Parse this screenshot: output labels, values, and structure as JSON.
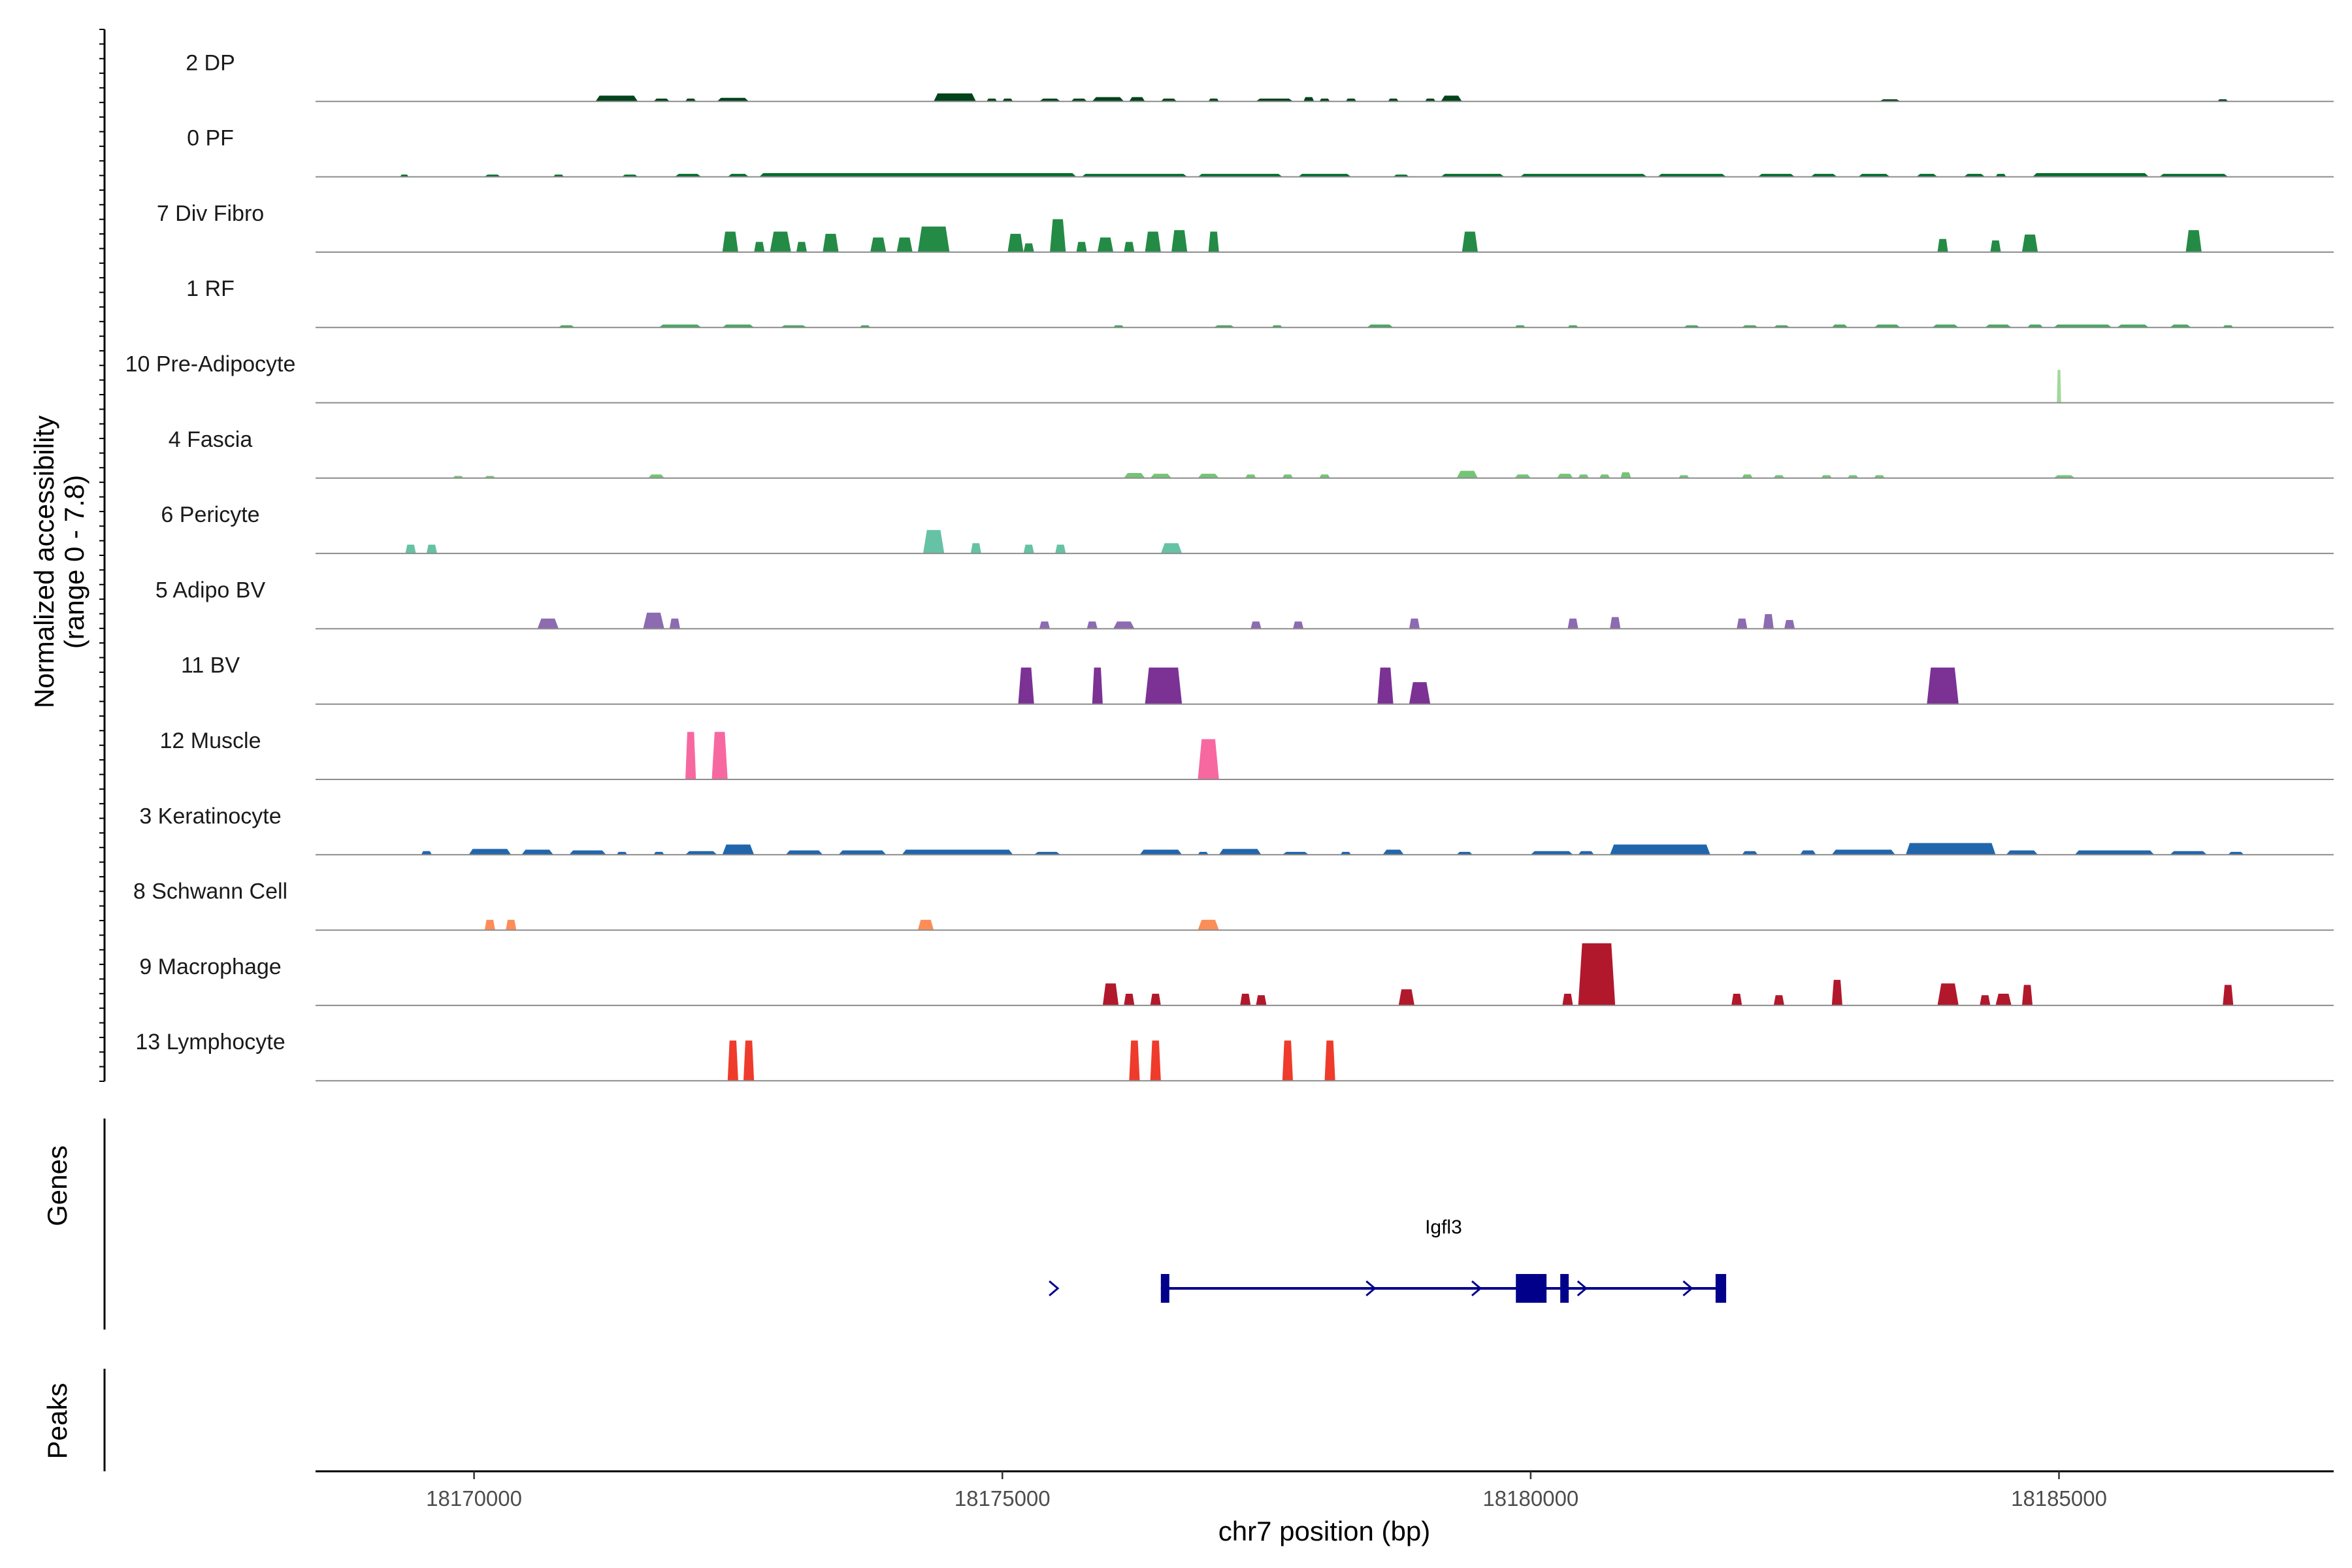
{
  "chart_data": {
    "type": "area",
    "title": "",
    "xlabel": "chr7 position (bp)",
    "ylabel": "Normalized accessibility",
    "ylabel_range": "(range 0 - 7.8)",
    "ylim": [
      0,
      7.8
    ],
    "xlim": [
      18168500,
      18187600
    ],
    "x_ticks": [
      18170000,
      18175000,
      18180000,
      18185000
    ],
    "x_tick_labels": [
      "18170000",
      "18175000",
      "18180000",
      "18185000"
    ],
    "gene_panel_label": "Genes",
    "peaks_panel_label": "Peaks",
    "gene": {
      "name": "Igfl3",
      "start": 18176500,
      "end": 18181850,
      "strand": "+",
      "color": "#00008B",
      "exons": [
        [
          18176500,
          18176580
        ],
        [
          18179860,
          18180150
        ],
        [
          18180280,
          18180360
        ],
        [
          18181750,
          18181850
        ]
      ],
      "arrows": [
        18175500,
        18178500,
        18179500,
        18180500,
        18181500
      ]
    },
    "tracks": [
      {
        "name": "2 DP",
        "color": "#00441B",
        "peaks": [
          [
            18171150,
            18171550,
            0.08
          ],
          [
            18171700,
            18171850,
            0.04
          ],
          [
            18172000,
            18172100,
            0.04
          ],
          [
            18172300,
            18172600,
            0.05
          ],
          [
            18174350,
            18174750,
            0.11
          ],
          [
            18174850,
            18174950,
            0.04
          ],
          [
            18175000,
            18175100,
            0.04
          ],
          [
            18175350,
            18175550,
            0.04
          ],
          [
            18175650,
            18175800,
            0.04
          ],
          [
            18175850,
            18176150,
            0.06
          ],
          [
            18176200,
            18176350,
            0.06
          ],
          [
            18176500,
            18176650,
            0.04
          ],
          [
            18176950,
            18177050,
            0.04
          ],
          [
            18177400,
            18177750,
            0.04
          ],
          [
            18177850,
            18177950,
            0.06
          ],
          [
            18178000,
            18178100,
            0.04
          ],
          [
            18178250,
            18178350,
            0.04
          ],
          [
            18178650,
            18178750,
            0.04
          ],
          [
            18179000,
            18179100,
            0.04
          ],
          [
            18179150,
            18179350,
            0.08
          ],
          [
            18183300,
            18183500,
            0.03
          ],
          [
            18186500,
            18186600,
            0.03
          ]
        ]
      },
      {
        "name": "0 PF",
        "color": "#006D2C",
        "peaks": [
          [
            18169300,
            18169380,
            0.03
          ],
          [
            18170100,
            18170250,
            0.03
          ],
          [
            18170750,
            18170850,
            0.03
          ],
          [
            18171400,
            18171550,
            0.03
          ],
          [
            18171900,
            18172150,
            0.04
          ],
          [
            18172400,
            18172600,
            0.04
          ],
          [
            18172700,
            18175700,
            0.05
          ],
          [
            18175750,
            18176750,
            0.04
          ],
          [
            18176850,
            18177650,
            0.04
          ],
          [
            18177800,
            18178300,
            0.04
          ],
          [
            18178700,
            18178850,
            0.03
          ],
          [
            18179150,
            18179750,
            0.04
          ],
          [
            18179900,
            18181100,
            0.04
          ],
          [
            18181200,
            18181850,
            0.04
          ],
          [
            18182150,
            18182500,
            0.04
          ],
          [
            18182650,
            18182900,
            0.04
          ],
          [
            18183100,
            18183400,
            0.04
          ],
          [
            18183650,
            18183850,
            0.04
          ],
          [
            18184100,
            18184300,
            0.04
          ],
          [
            18184400,
            18184500,
            0.04
          ],
          [
            18184750,
            18185850,
            0.05
          ],
          [
            18185950,
            18186600,
            0.04
          ]
        ]
      },
      {
        "name": "7 Div Fibro",
        "color": "#238B45",
        "peaks": [
          [
            18172350,
            18172500,
            0.28
          ],
          [
            18172650,
            18172750,
            0.14
          ],
          [
            18172800,
            18173000,
            0.28
          ],
          [
            18173050,
            18173150,
            0.14
          ],
          [
            18173300,
            18173450,
            0.25
          ],
          [
            18173750,
            18173900,
            0.2
          ],
          [
            18174000,
            18174150,
            0.2
          ],
          [
            18174200,
            18174500,
            0.35
          ],
          [
            18175050,
            18175200,
            0.25
          ],
          [
            18175200,
            18175300,
            0.12
          ],
          [
            18175450,
            18175600,
            0.45
          ],
          [
            18175700,
            18175800,
            0.14
          ],
          [
            18175900,
            18176050,
            0.2
          ],
          [
            18176150,
            18176250,
            0.14
          ],
          [
            18176350,
            18176500,
            0.28
          ],
          [
            18176600,
            18176750,
            0.3
          ],
          [
            18176950,
            18177050,
            0.28
          ],
          [
            18179350,
            18179500,
            0.28
          ],
          [
            18183850,
            18183950,
            0.18
          ],
          [
            18184350,
            18184450,
            0.16
          ],
          [
            18184650,
            18184800,
            0.24
          ],
          [
            18186200,
            18186350,
            0.3
          ]
        ]
      },
      {
        "name": "1 RF",
        "color": "#41AB5D",
        "peaks": [
          [
            18170800,
            18170950,
            0.03
          ],
          [
            18171750,
            18172150,
            0.04
          ],
          [
            18172350,
            18172650,
            0.04
          ],
          [
            18172900,
            18173150,
            0.03
          ],
          [
            18173650,
            18173750,
            0.03
          ],
          [
            18176050,
            18176150,
            0.03
          ],
          [
            18177000,
            18177200,
            0.03
          ],
          [
            18177550,
            18177650,
            0.03
          ],
          [
            18178450,
            18178700,
            0.04
          ],
          [
            18179850,
            18179950,
            0.03
          ],
          [
            18180350,
            18180450,
            0.03
          ],
          [
            18181450,
            18181600,
            0.03
          ],
          [
            18182000,
            18182150,
            0.03
          ],
          [
            18182300,
            18182450,
            0.03
          ],
          [
            18182850,
            18183000,
            0.04
          ],
          [
            18183250,
            18183500,
            0.04
          ],
          [
            18183800,
            18184050,
            0.04
          ],
          [
            18184300,
            18184550,
            0.04
          ],
          [
            18184700,
            18184850,
            0.04
          ],
          [
            18184950,
            18185500,
            0.04
          ],
          [
            18185550,
            18185850,
            0.04
          ],
          [
            18186050,
            18186250,
            0.04
          ],
          [
            18186550,
            18186650,
            0.03
          ]
        ]
      },
      {
        "name": "10 Pre-Adipocyte",
        "color": "#A1D99B",
        "peaks": [
          [
            18184980,
            18185020,
            0.45
          ]
        ]
      },
      {
        "name": "4 Fascia",
        "color": "#74C476",
        "peaks": [
          [
            18169800,
            18169900,
            0.03
          ],
          [
            18170100,
            18170200,
            0.03
          ],
          [
            18171650,
            18171800,
            0.05
          ],
          [
            18176150,
            18176350,
            0.07
          ],
          [
            18176400,
            18176600,
            0.06
          ],
          [
            18176850,
            18177050,
            0.06
          ],
          [
            18177300,
            18177400,
            0.05
          ],
          [
            18177650,
            18177750,
            0.05
          ],
          [
            18178000,
            18178100,
            0.05
          ],
          [
            18179300,
            18179500,
            0.1
          ],
          [
            18179850,
            18180000,
            0.05
          ],
          [
            18180250,
            18180400,
            0.06
          ],
          [
            18180450,
            18180550,
            0.05
          ],
          [
            18180650,
            18180750,
            0.05
          ],
          [
            18180850,
            18180950,
            0.08
          ],
          [
            18181400,
            18181500,
            0.04
          ],
          [
            18182000,
            18182100,
            0.05
          ],
          [
            18182300,
            18182400,
            0.04
          ],
          [
            18182750,
            18182850,
            0.04
          ],
          [
            18183000,
            18183100,
            0.04
          ],
          [
            18183250,
            18183350,
            0.04
          ],
          [
            18184950,
            18185150,
            0.04
          ]
        ]
      },
      {
        "name": "6 Pericyte",
        "color": "#66C2A4",
        "peaks": [
          [
            18169350,
            18169450,
            0.12
          ],
          [
            18169550,
            18169650,
            0.12
          ],
          [
            18174250,
            18174450,
            0.32
          ],
          [
            18174700,
            18174800,
            0.14
          ],
          [
            18175200,
            18175300,
            0.12
          ],
          [
            18175500,
            18175600,
            0.12
          ],
          [
            18176500,
            18176700,
            0.14
          ]
        ]
      },
      {
        "name": "5 Adipo BV",
        "color": "#8C6BB1",
        "peaks": [
          [
            18170600,
            18170800,
            0.14
          ],
          [
            18171600,
            18171800,
            0.22
          ],
          [
            18171850,
            18171950,
            0.14
          ],
          [
            18175350,
            18175450,
            0.1
          ],
          [
            18175800,
            18175900,
            0.1
          ],
          [
            18176050,
            18176250,
            0.1
          ],
          [
            18177350,
            18177450,
            0.1
          ],
          [
            18177750,
            18177850,
            0.1
          ],
          [
            18178850,
            18178950,
            0.14
          ],
          [
            18180350,
            18180450,
            0.14
          ],
          [
            18180750,
            18180850,
            0.16
          ],
          [
            18181950,
            18182050,
            0.14
          ],
          [
            18182200,
            18182300,
            0.2
          ],
          [
            18182400,
            18182500,
            0.12
          ]
        ]
      },
      {
        "name": "11 BV",
        "color": "#7B3294",
        "peaks": [
          [
            18175150,
            18175300,
            0.5
          ],
          [
            18175850,
            18175950,
            0.5
          ],
          [
            18176350,
            18176700,
            0.5
          ],
          [
            18178550,
            18178700,
            0.5
          ],
          [
            18178850,
            18179050,
            0.3
          ],
          [
            18183750,
            18184050,
            0.5
          ]
        ]
      },
      {
        "name": "12 Muscle",
        "color": "#F768A1",
        "peaks": [
          [
            18172000,
            18172100,
            0.65
          ],
          [
            18172250,
            18172400,
            0.65
          ],
          [
            18176850,
            18177050,
            0.55
          ]
        ]
      },
      {
        "name": "3 Keratinocyte",
        "color": "#2166AC",
        "peaks": [
          [
            18169500,
            18169600,
            0.05
          ],
          [
            18169950,
            18170350,
            0.08
          ],
          [
            18170450,
            18170750,
            0.07
          ],
          [
            18170900,
            18171250,
            0.06
          ],
          [
            18171350,
            18171450,
            0.04
          ],
          [
            18171700,
            18171800,
            0.04
          ],
          [
            18172000,
            18172300,
            0.05
          ],
          [
            18172350,
            18172650,
            0.14
          ],
          [
            18172950,
            18173300,
            0.06
          ],
          [
            18173450,
            18173900,
            0.06
          ],
          [
            18174050,
            18175100,
            0.07
          ],
          [
            18175300,
            18175550,
            0.04
          ],
          [
            18176300,
            18176700,
            0.07
          ],
          [
            18176850,
            18176950,
            0.04
          ],
          [
            18177050,
            18177450,
            0.08
          ],
          [
            18177650,
            18177900,
            0.04
          ],
          [
            18178200,
            18178300,
            0.04
          ],
          [
            18178600,
            18178800,
            0.07
          ],
          [
            18179300,
            18179450,
            0.04
          ],
          [
            18180000,
            18180400,
            0.05
          ],
          [
            18180450,
            18180600,
            0.05
          ],
          [
            18180750,
            18181700,
            0.14
          ],
          [
            18182000,
            18182150,
            0.05
          ],
          [
            18182550,
            18182700,
            0.06
          ],
          [
            18182850,
            18183450,
            0.07
          ],
          [
            18183550,
            18184400,
            0.16
          ],
          [
            18184500,
            18184800,
            0.06
          ],
          [
            18185150,
            18185900,
            0.06
          ],
          [
            18186050,
            18186400,
            0.05
          ],
          [
            18186600,
            18186750,
            0.04
          ]
        ]
      },
      {
        "name": "8 Schwann Cell",
        "color": "#FC8D59",
        "peaks": [
          [
            18170100,
            18170200,
            0.14
          ],
          [
            18170300,
            18170400,
            0.14
          ],
          [
            18174200,
            18174350,
            0.14
          ],
          [
            18176850,
            18177050,
            0.14
          ]
        ]
      },
      {
        "name": "9 Macrophage",
        "color": "#B2182B",
        "peaks": [
          [
            18175950,
            18176100,
            0.3
          ],
          [
            18176150,
            18176250,
            0.16
          ],
          [
            18176400,
            18176500,
            0.16
          ],
          [
            18177250,
            18177350,
            0.16
          ],
          [
            18177400,
            18177500,
            0.14
          ],
          [
            18178750,
            18178900,
            0.22
          ],
          [
            18180300,
            18180400,
            0.16
          ],
          [
            18180450,
            18180800,
            0.85
          ],
          [
            18181900,
            18182000,
            0.16
          ],
          [
            18182300,
            18182400,
            0.14
          ],
          [
            18182850,
            18182950,
            0.35
          ],
          [
            18183850,
            18184050,
            0.3
          ],
          [
            18184250,
            18184350,
            0.14
          ],
          [
            18184400,
            18184550,
            0.16
          ],
          [
            18184650,
            18184750,
            0.28
          ],
          [
            18186550,
            18186650,
            0.28
          ]
        ]
      },
      {
        "name": "13 Lymphocyte",
        "color": "#EF3B2C",
        "peaks": [
          [
            18172400,
            18172500,
            0.55
          ],
          [
            18172550,
            18172650,
            0.55
          ],
          [
            18176200,
            18176300,
            0.55
          ],
          [
            18176400,
            18176500,
            0.55
          ],
          [
            18177650,
            18177750,
            0.55
          ],
          [
            18178050,
            18178150,
            0.55
          ]
        ]
      }
    ]
  }
}
